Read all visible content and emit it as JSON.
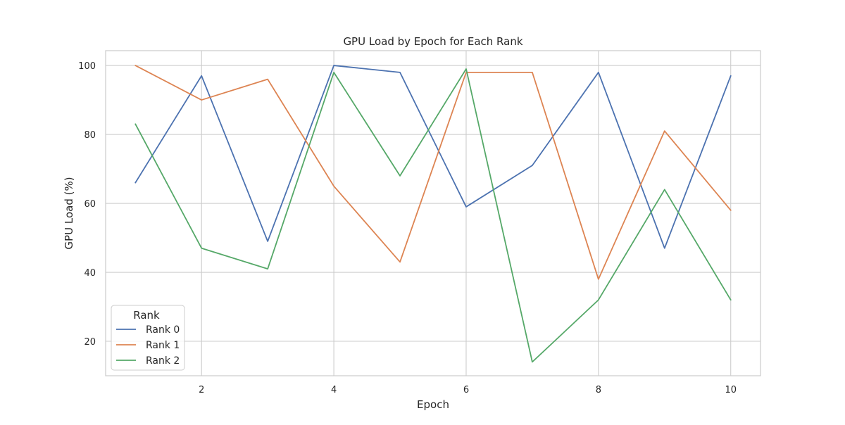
{
  "chart_data": {
    "type": "line",
    "title": "GPU Load by Epoch for Each Rank",
    "xlabel": "Epoch",
    "ylabel": "GPU Load (%)",
    "xlim": [
      0.55,
      10.45
    ],
    "ylim": [
      10.0,
      104.3
    ],
    "x_ticks": [
      2,
      4,
      6,
      8,
      10
    ],
    "y_ticks": [
      20,
      40,
      60,
      80,
      100
    ],
    "grid": true,
    "legend": {
      "title": "Rank",
      "placement": "lower-left"
    },
    "x": [
      1,
      2,
      3,
      4,
      5,
      6,
      7,
      8,
      9,
      10
    ],
    "series": [
      {
        "name": "Rank 0",
        "color": "#4c72b0",
        "values": [
          66,
          97,
          49,
          100,
          98,
          59,
          71,
          98,
          47,
          97
        ]
      },
      {
        "name": "Rank 1",
        "color": "#dd8452",
        "values": [
          100,
          90,
          96,
          65,
          43,
          98,
          98,
          38,
          81,
          58
        ]
      },
      {
        "name": "Rank 2",
        "color": "#55a868",
        "values": [
          83,
          47,
          41,
          98,
          68,
          99,
          14,
          32,
          64,
          32
        ]
      }
    ]
  }
}
